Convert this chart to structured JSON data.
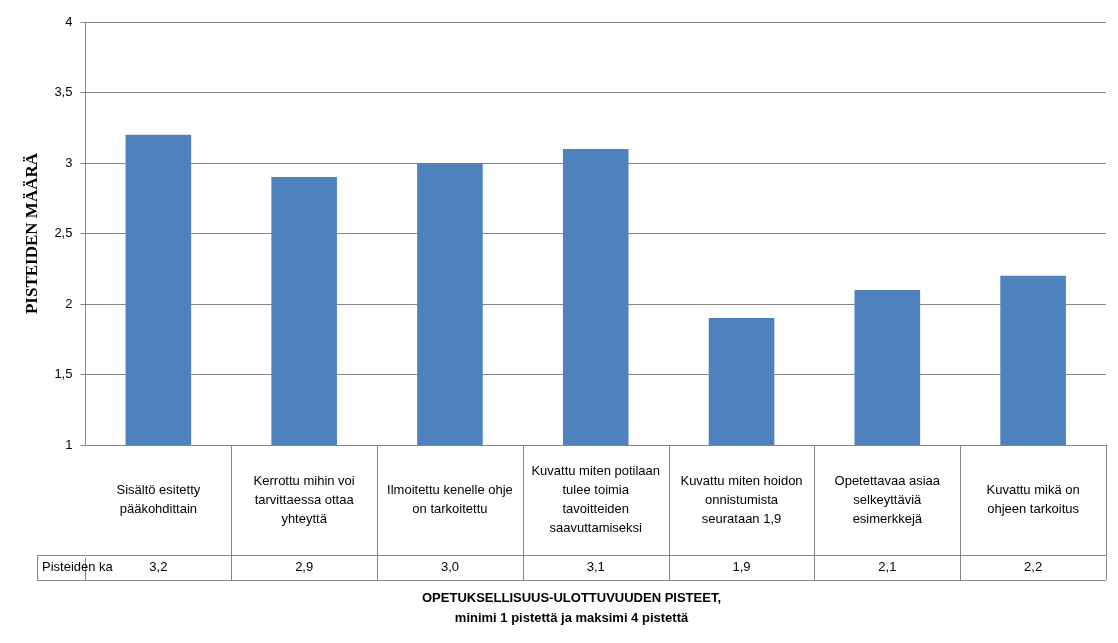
{
  "chart_data": {
    "type": "bar",
    "xlabel": "OPETUKSELLISUUS-ULOTTUVUUDEN PISTEET,\nminimi 1 pistettä ja maksimi 4 pistettä",
    "ylabel": "PISTEIDEN MÄÄRÄ",
    "categories": [
      "Sisältö esitetty pääkohdittain",
      "Kerrottu mihin voi tarvittaessa ottaa yhteyttä",
      "Ilmoitettu kenelle ohje on tarkoitettu",
      "Kuvattu miten potilaan tulee toimia tavoitteiden saavuttamiseksi",
      "Kuvattu miten hoidon onnistumista seurataan 1,9",
      "Opetettavaa asiaa selkeyttäviä esimerkkejä",
      "Kuvattu mikä on ohjeen tarkoitus"
    ],
    "series": [
      {
        "name": "Pisteiden ka",
        "color": "#4f81bd",
        "values": [
          3.2,
          2.9,
          3.0,
          3.1,
          1.9,
          2.1,
          2.2
        ],
        "value_labels": [
          "3,2",
          "2,9",
          "3,0",
          "3,1",
          "1,9",
          "2,1",
          "2,2"
        ]
      }
    ],
    "ylim": [
      1,
      4
    ],
    "yticks": [
      1,
      {
        "value": 1.5,
        "label": "1,5"
      },
      2,
      {
        "value": 2.5,
        "label": "2,5"
      },
      3,
      {
        "value": 3.5,
        "label": "3,5"
      },
      4
    ],
    "grid": "y",
    "legend": false
  }
}
